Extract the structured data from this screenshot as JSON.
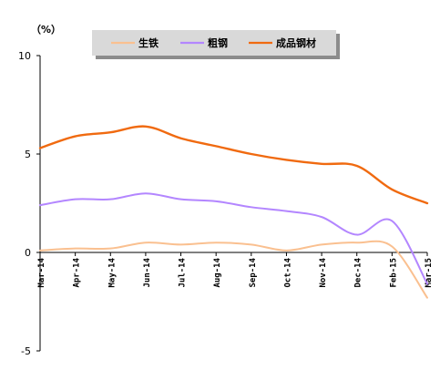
{
  "chart_data": {
    "type": "line",
    "unit_label": "（%）",
    "categories": [
      "Mar-14",
      "Apr-14",
      "May-14",
      "Jun-14",
      "Jul-14",
      "Aug-14",
      "Sep-14",
      "Oct-14",
      "Nov-14",
      "Dec-14",
      "Feb-15",
      "Mar-15"
    ],
    "ylim": [
      -5,
      10
    ],
    "yticks": [
      -5,
      0,
      5,
      10
    ],
    "grid": false,
    "legend_position": "top",
    "series": [
      {
        "name": "生铁",
        "color": "#FAC090",
        "values": [
          0.1,
          0.2,
          0.2,
          0.5,
          0.4,
          0.5,
          0.4,
          0.1,
          0.4,
          0.5,
          0.3,
          -2.3
        ]
      },
      {
        "name": "粗钢",
        "color": "#B386FF",
        "values": [
          2.4,
          2.7,
          2.7,
          3.0,
          2.7,
          2.6,
          2.3,
          2.1,
          1.8,
          0.9,
          1.6,
          -1.6
        ]
      },
      {
        "name": "成品钢材",
        "color": "#F06A10",
        "values": [
          5.3,
          5.9,
          6.1,
          6.4,
          5.8,
          5.4,
          5.0,
          4.7,
          4.5,
          4.4,
          3.2,
          2.5
        ]
      }
    ]
  }
}
